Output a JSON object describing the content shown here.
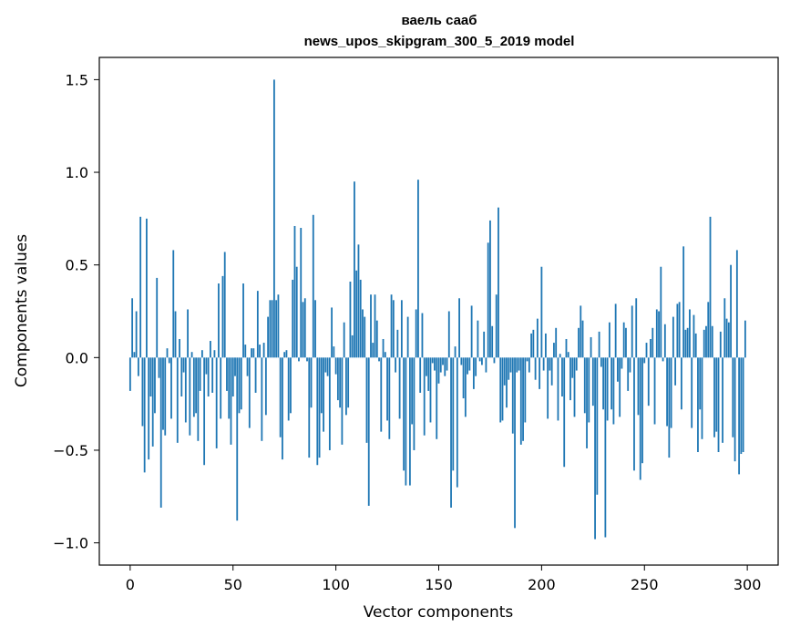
{
  "chart_data": {
    "type": "bar",
    "title": "ваель сааб",
    "subtitle": "news_upos_skipgram_300_5_2019 model",
    "xlabel": "Vector components",
    "ylabel": "Components values",
    "xlim": [
      -15,
      315
    ],
    "ylim": [
      -1.12,
      1.62
    ],
    "xticks": [
      0,
      50,
      100,
      150,
      200,
      250,
      300
    ],
    "xtick_labels": [
      "0",
      "50",
      "100",
      "150",
      "200",
      "250",
      "300"
    ],
    "yticks": [
      -1.0,
      -0.5,
      0.0,
      0.5,
      1.0,
      1.5
    ],
    "ytick_labels": [
      "−1.0",
      "−0.5",
      "0.0",
      "0.5",
      "1.0",
      "1.5"
    ],
    "grid": false,
    "bar_color": "#1f77b4",
    "x_start": 0,
    "values": [
      -0.18,
      0.32,
      0.03,
      0.25,
      -0.1,
      0.76,
      -0.37,
      -0.62,
      0.75,
      -0.55,
      -0.21,
      -0.48,
      -0.3,
      0.43,
      -0.11,
      -0.81,
      -0.39,
      -0.42,
      0.05,
      -0.03,
      -0.33,
      0.58,
      0.25,
      -0.46,
      0.1,
      -0.21,
      -0.08,
      -0.35,
      0.26,
      -0.42,
      0.03,
      -0.32,
      -0.3,
      -0.45,
      -0.18,
      0.04,
      -0.58,
      -0.09,
      -0.21,
      0.09,
      -0.19,
      0.04,
      -0.49,
      0.4,
      -0.33,
      0.44,
      0.57,
      -0.18,
      -0.33,
      -0.47,
      -0.21,
      -0.1,
      -0.88,
      -0.3,
      -0.28,
      0.4,
      0.07,
      -0.1,
      -0.38,
      0.05,
      0.05,
      -0.19,
      0.36,
      0.07,
      -0.45,
      0.08,
      -0.31,
      0.22,
      0.31,
      0.31,
      1.5,
      0.31,
      0.34,
      -0.43,
      -0.55,
      0.03,
      0.04,
      -0.34,
      -0.3,
      0.42,
      0.71,
      0.49,
      -0.02,
      0.7,
      0.3,
      0.32,
      -0.02,
      -0.54,
      -0.27,
      0.77,
      0.31,
      -0.58,
      -0.54,
      -0.3,
      -0.4,
      -0.08,
      -0.1,
      -0.5,
      0.27,
      0.06,
      -0.09,
      -0.23,
      -0.27,
      -0.47,
      0.19,
      -0.31,
      -0.27,
      0.41,
      0.12,
      0.95,
      0.47,
      0.61,
      0.42,
      0.26,
      0.22,
      -0.46,
      -0.8,
      0.34,
      0.08,
      0.34,
      0.2,
      -0.02,
      -0.4,
      0.1,
      0.03,
      -0.34,
      -0.44,
      0.34,
      0.31,
      -0.08,
      0.15,
      -0.33,
      0.31,
      -0.61,
      -0.69,
      0.22,
      -0.69,
      -0.36,
      -0.5,
      0.26,
      0.96,
      -0.19,
      0.24,
      -0.42,
      -0.1,
      -0.18,
      -0.35,
      -0.03,
      -0.07,
      -0.44,
      -0.14,
      -0.08,
      -0.04,
      -0.1,
      -0.07,
      0.25,
      -0.81,
      -0.61,
      0.06,
      -0.7,
      0.32,
      -0.04,
      -0.22,
      -0.32,
      -0.09,
      -0.07,
      0.28,
      -0.17,
      -0.1,
      0.2,
      -0.02,
      -0.04,
      0.14,
      -0.08,
      0.62,
      0.74,
      0.17,
      -0.03,
      0.34,
      0.81,
      -0.35,
      -0.34,
      -0.15,
      -0.27,
      -0.12,
      -0.08,
      -0.41,
      -0.92,
      -0.08,
      -0.07,
      -0.47,
      -0.45,
      -0.35,
      -0.02,
      -0.08,
      0.13,
      0.15,
      -0.12,
      0.21,
      -0.17,
      0.49,
      -0.07,
      0.13,
      -0.33,
      -0.07,
      -0.15,
      0.08,
      0.16,
      -0.34,
      0.02,
      -0.21,
      -0.59,
      0.1,
      0.03,
      -0.23,
      -0.11,
      -0.32,
      -0.07,
      0.16,
      0.28,
      0.2,
      -0.3,
      -0.49,
      -0.35,
      0.11,
      -0.26,
      -0.98,
      -0.74,
      0.14,
      -0.05,
      -0.28,
      -0.97,
      -0.34,
      0.19,
      -0.28,
      -0.36,
      0.29,
      -0.13,
      -0.32,
      -0.06,
      0.19,
      0.16,
      -0.18,
      -0.08,
      0.28,
      -0.61,
      0.32,
      -0.31,
      -0.66,
      -0.57,
      -0.03,
      0.08,
      -0.26,
      0.1,
      0.16,
      -0.36,
      0.26,
      0.25,
      0.49,
      -0.02,
      0.18,
      -0.37,
      -0.54,
      -0.38,
      0.22,
      -0.15,
      0.29,
      0.3,
      -0.28,
      0.6,
      0.15,
      0.16,
      0.26,
      -0.38,
      0.23,
      0.13,
      -0.51,
      -0.28,
      -0.44,
      0.15,
      0.17,
      0.3,
      0.76,
      0.17,
      -0.43,
      -0.4,
      -0.51,
      0.14,
      -0.46,
      0.32,
      0.21,
      0.19,
      0.5,
      -0.43,
      -0.56,
      0.58,
      -0.63,
      -0.52,
      -0.51,
      0.2
    ]
  }
}
